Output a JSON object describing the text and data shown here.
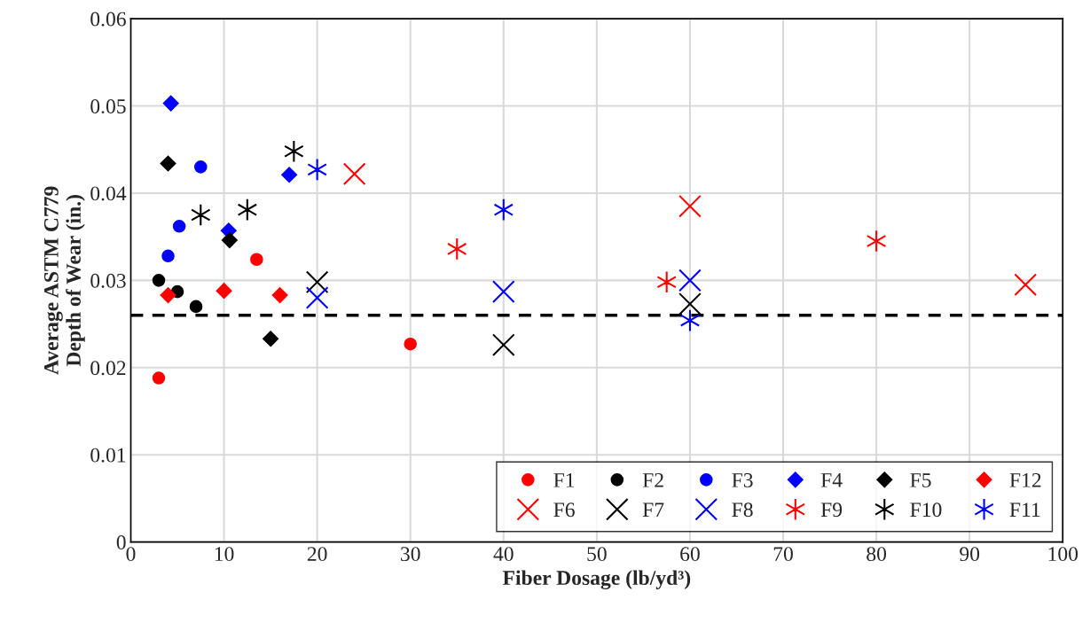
{
  "chart_data": {
    "type": "scatter",
    "xlabel": "Fiber Dosage (lb/yd³)",
    "ylabel": "Average ASTM C779\nDepth of Wear (in.)",
    "xlim": [
      0,
      100
    ],
    "xticks": [
      0,
      10,
      20,
      30,
      40,
      50,
      60,
      70,
      80,
      90,
      100
    ],
    "ylim": [
      0,
      0.06
    ],
    "yticks": [
      0,
      0.01,
      0.02,
      0.03,
      0.04,
      0.05,
      0.06
    ],
    "grid": true,
    "legend": "bottom right",
    "ref_lines": [
      {
        "axis": "y",
        "value": 0.026,
        "color": "#000000",
        "line_style": "dashed"
      }
    ],
    "series": [
      {
        "name": "F1",
        "color": "#ff0000",
        "marker": "circle",
        "x": [
          3,
          13.5,
          30
        ],
        "values": [
          0.0188,
          0.0324,
          0.0227
        ]
      },
      {
        "name": "F2",
        "color": "#000000",
        "marker": "circle",
        "x": [
          3,
          5,
          7
        ],
        "values": [
          0.03,
          0.0287,
          0.027
        ]
      },
      {
        "name": "F3",
        "color": "#0000ff",
        "marker": "circle",
        "x": [
          4,
          5.2,
          7.5
        ],
        "values": [
          0.0328,
          0.0362,
          0.043
        ]
      },
      {
        "name": "F4",
        "color": "#0000ff",
        "marker": "diamond",
        "x": [
          4.3,
          10.5,
          17
        ],
        "values": [
          0.0503,
          0.0357,
          0.0421
        ]
      },
      {
        "name": "F5",
        "color": "#000000",
        "marker": "diamond",
        "x": [
          4,
          10.6,
          15
        ],
        "values": [
          0.0434,
          0.0346,
          0.0233
        ]
      },
      {
        "name": "F12",
        "color": "#ff0000",
        "marker": "diamond",
        "x": [
          4,
          10,
          16
        ],
        "values": [
          0.0283,
          0.0288,
          0.0283
        ]
      },
      {
        "name": "F6",
        "color": "#ff0000",
        "marker": "cross",
        "x": [
          24,
          60,
          96
        ],
        "values": [
          0.0422,
          0.0385,
          0.0295
        ]
      },
      {
        "name": "F7",
        "color": "#000000",
        "marker": "cross",
        "x": [
          20,
          40,
          60
        ],
        "values": [
          0.0298,
          0.0226,
          0.0273
        ]
      },
      {
        "name": "F8",
        "color": "#0000ff",
        "marker": "cross",
        "x": [
          20,
          40,
          60
        ],
        "values": [
          0.028,
          0.0287,
          0.03
        ]
      },
      {
        "name": "F9",
        "color": "#ff0000",
        "x": [
          35,
          57.5,
          80
        ],
        "values": [
          0.0336,
          0.0298,
          0.0345
        ]
      },
      {
        "name": "F10",
        "color": "#000000",
        "x": [
          7.5,
          12.5,
          17.5
        ],
        "values": [
          0.0375,
          0.0381,
          0.0448
        ]
      },
      {
        "name": "F11",
        "color": "#0000ff",
        "x": [
          20,
          40,
          60
        ],
        "values": [
          0.0427,
          0.0381,
          0.0254
        ]
      }
    ]
  }
}
